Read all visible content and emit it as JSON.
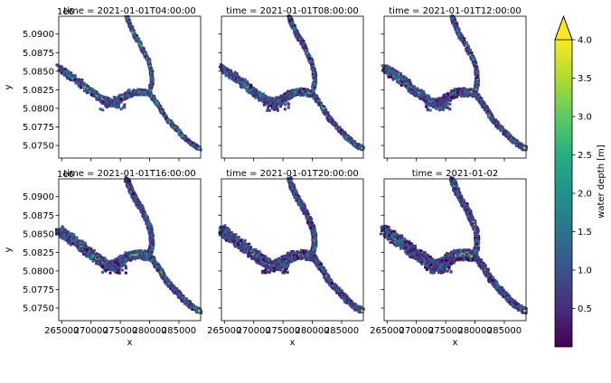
{
  "chart_data": {
    "type": "heatmap",
    "panels": [
      {
        "title": "time = 2021-01-01T04:00:00",
        "show_ylabel": true,
        "show_xlabel": false,
        "show_offset": true,
        "intensity": 0.0
      },
      {
        "title": "time = 2021-01-01T08:00:00",
        "show_ylabel": false,
        "show_xlabel": false,
        "show_offset": false,
        "intensity": 0.2
      },
      {
        "title": "time = 2021-01-01T12:00:00",
        "show_ylabel": false,
        "show_xlabel": false,
        "show_offset": false,
        "intensity": 0.4
      },
      {
        "title": "time = 2021-01-01T16:00:00",
        "show_ylabel": true,
        "show_xlabel": true,
        "show_offset": true,
        "intensity": 0.6
      },
      {
        "title": "time = 2021-01-01T20:00:00",
        "show_ylabel": false,
        "show_xlabel": true,
        "show_offset": false,
        "intensity": 0.8
      },
      {
        "title": "time = 2021-01-02",
        "show_ylabel": false,
        "show_xlabel": true,
        "show_offset": false,
        "intensity": 1.0
      }
    ],
    "xlabel": "x",
    "ylabel": "y",
    "y_offset_text": "1e6",
    "xlim": [
      264500,
      288700
    ],
    "ylim": [
      5073300,
      5092400
    ],
    "x_ticks": [
      265000,
      270000,
      275000,
      280000,
      285000
    ],
    "x_tick_labels": [
      "265000",
      "270000",
      "275000",
      "280000",
      "285000"
    ],
    "y_ticks": [
      5.075,
      5.0775,
      5.08,
      5.0825,
      5.085,
      5.0875,
      5.09
    ],
    "y_tick_labels": [
      "5.0750",
      "5.0775",
      "5.0800",
      "5.0825",
      "5.0850",
      "5.0875",
      "5.0900"
    ],
    "colorbar": {
      "label": "water depth [m]",
      "colormap": "viridis",
      "min": 0.0,
      "max": 4.0,
      "extend": "max",
      "ticks": [
        0.5,
        1.0,
        1.5,
        2.0,
        2.5,
        3.0,
        3.5,
        4.0
      ],
      "tick_labels": [
        "0.5",
        "1.0",
        "1.5",
        "2.0",
        "2.5",
        "3.0",
        "3.5",
        "4.0"
      ]
    },
    "river_network_xy": {
      "west_branch": [
        [
          264600,
          5085500
        ],
        [
          265600,
          5084800
        ],
        [
          266800,
          5084200
        ],
        [
          268200,
          5083400
        ],
        [
          269500,
          5082500
        ],
        [
          270700,
          5081900
        ],
        [
          271800,
          5081300
        ],
        [
          272900,
          5080700
        ],
        [
          274000,
          5080700
        ],
        [
          275000,
          5081300
        ],
        [
          276000,
          5081800
        ],
        [
          277000,
          5082100
        ],
        [
          278500,
          5082200
        ],
        [
          280000,
          5082000
        ]
      ],
      "north_branch": [
        [
          276100,
          5092300
        ],
        [
          276500,
          5091500
        ],
        [
          277000,
          5090600
        ],
        [
          277600,
          5089600
        ],
        [
          278400,
          5088700
        ],
        [
          279000,
          5087600
        ],
        [
          279800,
          5086400
        ],
        [
          280300,
          5085000
        ],
        [
          280400,
          5083600
        ],
        [
          280000,
          5082000
        ]
      ],
      "south_branch": [
        [
          280000,
          5082000
        ],
        [
          280800,
          5081200
        ],
        [
          281700,
          5080200
        ],
        [
          282600,
          5079000
        ],
        [
          283600,
          5078000
        ],
        [
          284600,
          5077200
        ],
        [
          285600,
          5076300
        ],
        [
          286600,
          5075600
        ],
        [
          287600,
          5075000
        ],
        [
          288600,
          5074600
        ]
      ]
    }
  }
}
